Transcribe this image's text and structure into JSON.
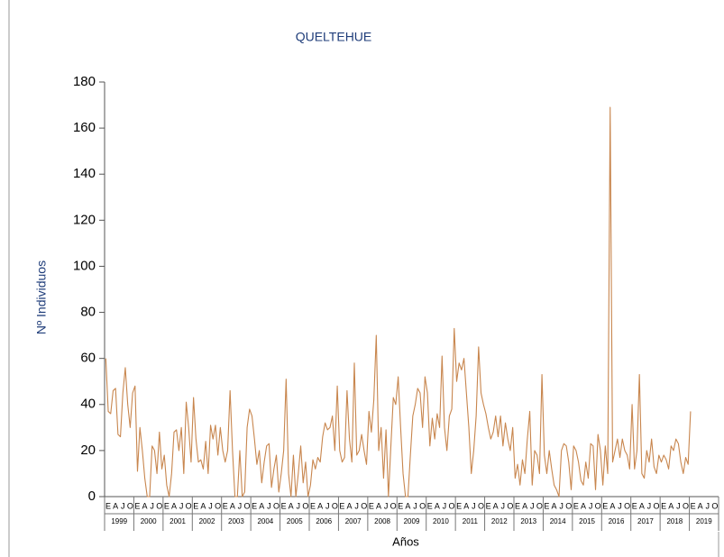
{
  "chart_data": {
    "type": "line",
    "title": "QUELTEHUE",
    "y_label": "Nº Individuos",
    "x_label": "Años",
    "categories": [
      "E",
      null,
      null,
      "A",
      null,
      null,
      "J",
      null,
      null,
      "O",
      null,
      null,
      "E",
      null,
      null,
      "A",
      null,
      null,
      "J",
      null,
      null,
      "O",
      null,
      null,
      "E",
      null,
      null,
      "A",
      null,
      null,
      "J",
      null,
      null,
      "O",
      null,
      null,
      "E",
      null,
      null,
      "A",
      null,
      null,
      "J",
      null,
      null,
      "O",
      null,
      null,
      "E",
      null,
      null,
      "A",
      null,
      null,
      "J",
      null,
      null,
      "O",
      null,
      null,
      "E",
      null,
      null,
      "A",
      null,
      null,
      "J",
      null,
      null,
      "O",
      null,
      null,
      "E",
      null,
      null,
      "A",
      null,
      null,
      "J",
      null,
      null,
      "O",
      null,
      null,
      "E",
      null,
      null,
      "A",
      null,
      null,
      "J",
      null,
      null,
      "O",
      null,
      null,
      "E",
      null,
      null,
      "A",
      null,
      null,
      "J",
      null,
      null,
      "O",
      null,
      null,
      "E",
      null,
      null,
      "A",
      null,
      null,
      "J",
      null,
      null,
      "O",
      null,
      null,
      "E",
      null,
      null,
      "A",
      null,
      null,
      "J",
      null,
      null,
      "O",
      null,
      null,
      "E",
      null,
      null,
      "A",
      null,
      null,
      "J",
      null,
      null,
      "O",
      null,
      null,
      "E",
      null,
      null,
      "A",
      null,
      null,
      "J",
      null,
      null,
      "O",
      null,
      null,
      "E",
      null,
      null,
      "A",
      null,
      null,
      "J",
      null,
      null,
      "O",
      null,
      null,
      "E",
      null,
      null,
      "A",
      null,
      null,
      "J",
      null,
      null,
      "O",
      null,
      null,
      "E",
      null,
      null,
      "A",
      null,
      null,
      "J",
      null,
      null,
      "O",
      null,
      null,
      "E",
      null,
      null,
      "A",
      null,
      null,
      "J",
      null,
      null,
      "O",
      null,
      null,
      "E",
      null,
      null,
      "A",
      null,
      null,
      "J",
      null,
      null,
      "O",
      null,
      null,
      "E",
      null,
      null,
      "A",
      null,
      null,
      "J",
      null,
      null,
      "O",
      null,
      null,
      "E",
      null,
      null,
      "A",
      null,
      null,
      "J",
      null,
      null,
      "O",
      null,
      null,
      "E",
      null,
      null,
      "A",
      null,
      null,
      "J",
      null,
      null,
      "O",
      null,
      null
    ],
    "years": [
      "1999",
      "2000",
      "2001",
      "2002",
      "2003",
      "2004",
      "2005",
      "2006",
      "2007",
      "2008",
      "2009",
      "2010",
      "2011",
      "2012",
      "2013",
      "2014",
      "2015",
      "2016",
      "2017",
      "2018",
      "2019"
    ],
    "color": "#c8864e",
    "values": [
      60,
      37,
      36,
      46,
      47,
      27,
      26,
      45,
      56,
      40,
      30,
      45,
      48,
      11,
      30,
      20,
      8,
      0,
      0,
      22,
      20,
      10,
      28,
      12,
      18,
      5,
      0,
      10,
      28,
      29,
      20,
      30,
      10,
      41,
      30,
      15,
      43,
      25,
      15,
      16,
      12,
      24,
      10,
      31,
      25,
      31,
      18,
      30,
      20,
      15,
      20,
      46,
      20,
      0,
      0,
      20,
      0,
      2,
      30,
      38,
      35,
      25,
      14,
      20,
      6,
      15,
      22,
      23,
      4,
      12,
      18,
      2,
      10,
      20,
      51,
      10,
      0,
      18,
      0,
      10,
      22,
      6,
      15,
      0,
      5,
      16,
      12,
      17,
      15,
      26,
      32,
      29,
      30,
      35,
      20,
      48,
      20,
      15,
      17,
      46,
      25,
      15,
      58,
      18,
      20,
      27,
      20,
      14,
      37,
      28,
      42,
      70,
      20,
      30,
      8,
      29,
      0,
      22,
      43,
      40,
      52,
      30,
      10,
      0,
      0,
      18,
      35,
      40,
      47,
      45,
      30,
      52,
      45,
      22,
      34,
      25,
      36,
      30,
      61,
      30,
      20,
      35,
      38,
      73,
      50,
      58,
      55,
      60,
      45,
      30,
      10,
      20,
      35,
      65,
      45,
      40,
      36,
      30,
      25,
      28,
      35,
      26,
      35,
      22,
      32,
      25,
      20,
      30,
      8,
      14,
      5,
      16,
      10,
      25,
      37,
      5,
      20,
      18,
      10,
      53,
      18,
      10,
      20,
      12,
      5,
      3,
      0,
      20,
      23,
      22,
      15,
      3,
      22,
      20,
      15,
      7,
      5,
      15,
      8,
      23,
      22,
      3,
      27,
      20,
      5,
      22,
      10,
      169,
      15,
      20,
      25,
      17,
      25,
      20,
      18,
      12,
      40,
      12,
      20,
      53,
      10,
      8,
      20,
      15,
      25,
      13,
      10,
      18,
      15,
      18,
      16,
      12,
      22,
      20,
      25,
      23,
      15,
      10,
      17,
      14,
      37,
      null,
      null,
      null,
      null,
      null,
      null,
      null,
      null,
      null,
      null,
      null
    ],
    "ylim": [
      0,
      180
    ],
    "yticks": [
      0,
      20,
      40,
      60,
      80,
      100,
      120,
      140,
      160,
      180
    ]
  }
}
